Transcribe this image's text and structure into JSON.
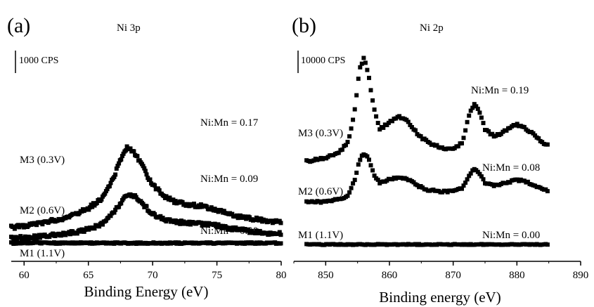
{
  "chart_data": [
    {
      "panel": "(a)",
      "type": "scatter",
      "title": "Ni 3p",
      "xlabel": "Binding Energy (eV)",
      "ylabel": "",
      "xlim": [
        59,
        80
      ],
      "xticks": [
        "60",
        "65",
        "70",
        "75",
        "80"
      ],
      "scale_bar_label": "1000 CPS",
      "series": [
        {
          "name": "M3 (0.3V)",
          "annotation": "Ni:Mn = 0.17",
          "x": [
            59,
            61,
            63,
            64,
            65,
            66,
            67,
            67.5,
            68,
            68.5,
            69,
            69.5,
            70,
            71,
            72,
            73,
            74,
            75,
            76,
            77,
            78,
            79,
            80
          ],
          "y": [
            0.85,
            1.05,
            1.35,
            1.6,
            1.9,
            2.4,
            3.6,
            4.6,
            5.2,
            5.0,
            4.5,
            3.8,
            3.2,
            2.5,
            2.2,
            2.1,
            2.0,
            1.8,
            1.6,
            1.4,
            1.3,
            1.2,
            1.15
          ]
        },
        {
          "name": "M2 (0.6V)",
          "annotation": "Ni:Mn = 0.09",
          "x": [
            59,
            61,
            63,
            64,
            65,
            66,
            67,
            67.5,
            68,
            68.5,
            69,
            69.5,
            70,
            71,
            72,
            73,
            74,
            75,
            76,
            77,
            78,
            79,
            80
          ],
          "y": [
            0.25,
            0.35,
            0.5,
            0.6,
            0.75,
            1.0,
            1.7,
            2.2,
            2.65,
            2.6,
            2.3,
            1.95,
            1.6,
            1.25,
            1.15,
            1.1,
            1.05,
            0.95,
            0.8,
            0.7,
            0.6,
            0.55,
            0.5
          ]
        },
        {
          "name": "M1 (1.1V)",
          "annotation": "Ni:Mn = 0.00",
          "x": [
            59,
            62,
            65,
            68,
            71,
            74,
            77,
            80
          ],
          "y": [
            0.0,
            0.0,
            0.0,
            0.0,
            0.0,
            0.0,
            0.0,
            0.0
          ]
        }
      ]
    },
    {
      "panel": "(b)",
      "type": "scatter",
      "title": "Ni 2p",
      "xlabel": "Binding energy (eV)",
      "ylabel": "",
      "xlim": [
        845,
        890
      ],
      "xticks": [
        "850",
        "860",
        "870",
        "880",
        "890"
      ],
      "scale_bar_label": "10000 CPS",
      "series": [
        {
          "name": "M3 (0.3V)",
          "annotation": "Ni:Mn = 0.19",
          "x": [
            847,
            850,
            852,
            853.5,
            854.5,
            855.3,
            856,
            856.7,
            857.5,
            858.5,
            860,
            861.5,
            863,
            864.5,
            866,
            868,
            870,
            871.5,
            872.5,
            873.3,
            874,
            875,
            876.5,
            878,
            880,
            882,
            884,
            885
          ],
          "y": [
            2.55,
            2.75,
            3.0,
            3.6,
            5.2,
            7.6,
            8.2,
            7.4,
            5.5,
            4.3,
            4.7,
            5.0,
            4.7,
            4.0,
            3.6,
            3.3,
            3.2,
            3.6,
            5.1,
            5.7,
            5.4,
            4.3,
            3.9,
            4.2,
            4.6,
            4.2,
            3.6,
            3.4
          ]
        },
        {
          "name": "M2 (0.6V)",
          "annotation": "Ni:Mn = 0.08",
          "x": [
            847,
            850,
            852,
            853.5,
            854.5,
            855.3,
            856,
            856.7,
            857.5,
            858.5,
            860,
            861.5,
            863,
            864.5,
            866,
            868,
            870,
            871.5,
            872.5,
            873.3,
            874,
            875,
            876.5,
            878,
            880,
            882,
            884,
            885
          ],
          "y": [
            0.3,
            0.35,
            0.45,
            0.7,
            1.5,
            2.6,
            3.0,
            2.7,
            1.9,
            1.35,
            1.55,
            1.7,
            1.55,
            1.2,
            1.0,
            0.9,
            0.9,
            1.1,
            1.8,
            2.15,
            1.95,
            1.35,
            1.2,
            1.35,
            1.55,
            1.35,
            1.05,
            0.95
          ]
        },
        {
          "name": "M1 (1.1V)",
          "annotation": "Ni:Mn = 0.00",
          "x": [
            847,
            852,
            857,
            862,
            867,
            872,
            877,
            882,
            885
          ],
          "y": [
            -2.0,
            -2.0,
            -2.0,
            -2.0,
            -2.0,
            -2.0,
            -2.0,
            -2.0,
            -2.0
          ]
        }
      ]
    }
  ]
}
